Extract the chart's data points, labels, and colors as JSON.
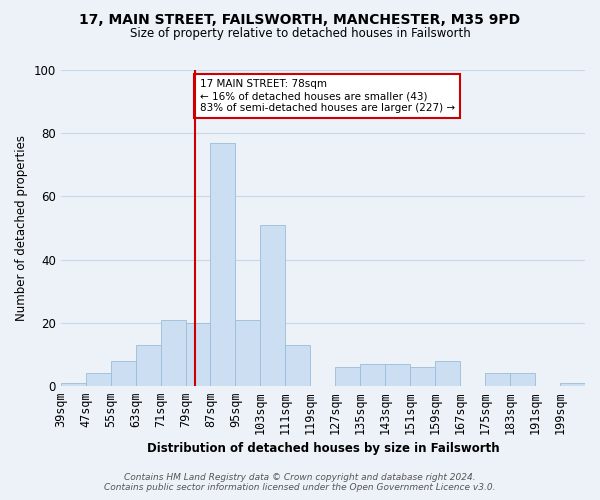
{
  "title": "17, MAIN STREET, FAILSWORTH, MANCHESTER, M35 9PD",
  "subtitle": "Size of property relative to detached houses in Failsworth",
  "xlabel": "Distribution of detached houses by size in Failsworth",
  "ylabel": "Number of detached properties",
  "bar_labels": [
    "39sqm",
    "47sqm",
    "55sqm",
    "63sqm",
    "71sqm",
    "79sqm",
    "87sqm",
    "95sqm",
    "103sqm",
    "111sqm",
    "119sqm",
    "127sqm",
    "135sqm",
    "143sqm",
    "151sqm",
    "159sqm",
    "167sqm",
    "175sqm",
    "183sqm",
    "191sqm",
    "199sqm"
  ],
  "bar_values": [
    1,
    4,
    8,
    13,
    21,
    20,
    77,
    21,
    51,
    13,
    0,
    6,
    7,
    7,
    6,
    8,
    0,
    4,
    4,
    0,
    1
  ],
  "bin_edges": [
    35,
    43,
    51,
    59,
    67,
    75,
    83,
    91,
    99,
    107,
    115,
    123,
    131,
    139,
    147,
    155,
    163,
    171,
    179,
    187,
    195,
    203
  ],
  "bar_color": "#ccdff2",
  "bar_edge_color": "#9bbdd8",
  "ref_line_x": 78,
  "ref_line_color": "#cc0000",
  "ylim": [
    0,
    100
  ],
  "annotation_text": "17 MAIN STREET: 78sqm\n← 16% of detached houses are smaller (43)\n83% of semi-detached houses are larger (227) →",
  "annotation_box_facecolor": "#ffffff",
  "annotation_box_edgecolor": "#cc0000",
  "footer_line1": "Contains HM Land Registry data © Crown copyright and database right 2024.",
  "footer_line2": "Contains public sector information licensed under the Open Government Licence v3.0.",
  "grid_color": "#c8d8e8",
  "background_color": "#edf2f8"
}
